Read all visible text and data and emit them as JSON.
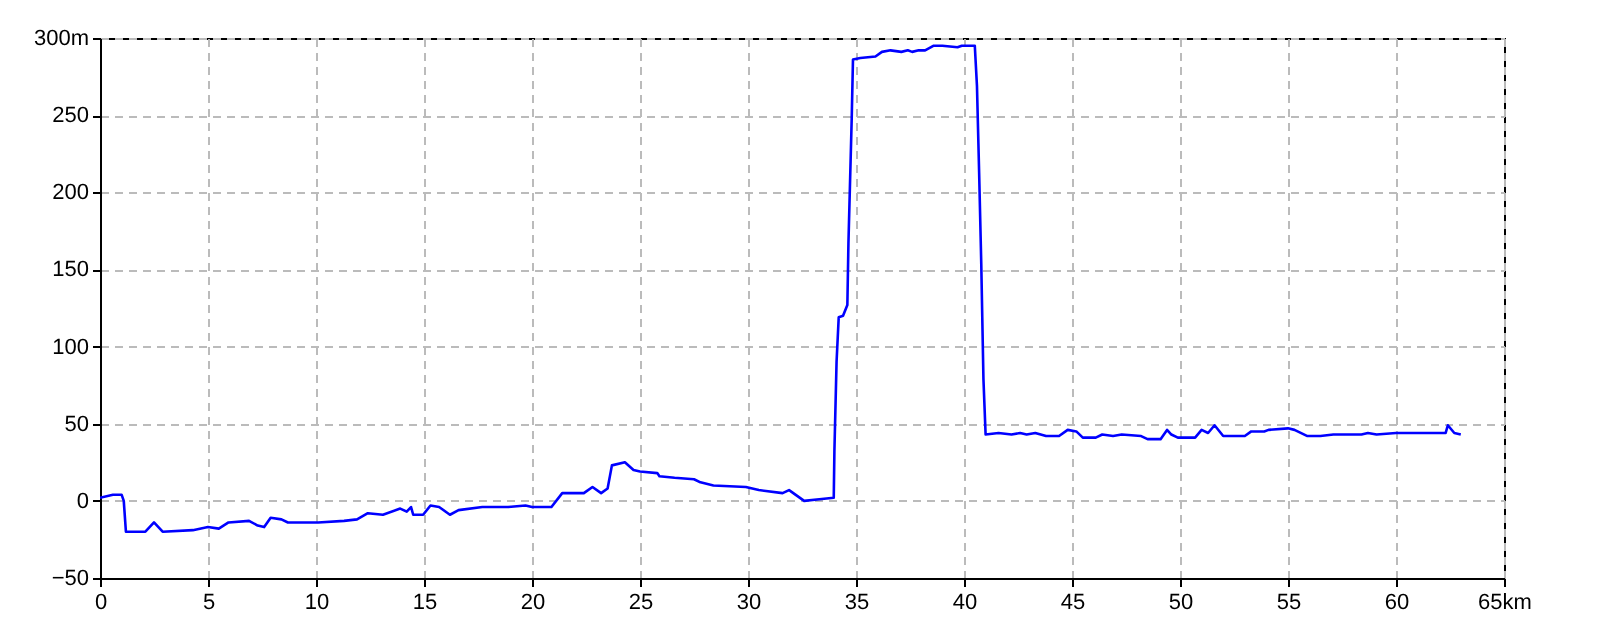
{
  "chart_data": {
    "type": "line",
    "x": [
      0,
      0.6,
      1.0,
      1.1,
      1.2,
      2.1,
      2.5,
      2.9,
      4.3,
      5.0,
      5.5,
      5.95,
      6.9,
      7.3,
      7.6,
      7.9,
      8.4,
      8.7,
      9.2,
      10.1,
      11.3,
      11.9,
      12.4,
      13.1,
      13.9,
      14.2,
      14.4,
      14.5,
      14.96,
      15.3,
      15.7,
      16.2,
      16.6,
      17.7,
      18.9,
      19.7,
      20.0,
      20.9,
      21.4,
      22.4,
      22.8,
      23.2,
      23.5,
      23.7,
      24.3,
      24.7,
      25.0,
      25.8,
      25.9,
      26.6,
      27.5,
      27.8,
      28.4,
      29.9,
      30.5,
      31.6,
      31.9,
      32.0,
      32.6,
      33.3,
      33.97,
      34.0,
      34.1,
      34.2,
      34.4,
      34.6,
      34.65,
      34.8,
      34.86,
      35.2,
      35.9,
      36.2,
      36.6,
      37.1,
      37.4,
      37.6,
      37.9,
      38.2,
      38.6,
      39.0,
      39.7,
      39.9,
      40.5,
      40.6,
      40.7,
      40.8,
      40.9,
      41.0,
      41.6,
      42.2,
      42.6,
      42.9,
      43.3,
      43.8,
      44.4,
      44.8,
      45.2,
      45.5,
      46.1,
      46.4,
      46.9,
      47.3,
      48.2,
      48.5,
      49.1,
      49.4,
      49.6,
      49.9,
      50.7,
      51.0,
      51.3,
      51.6,
      52.0,
      53.0,
      53.3,
      53.9,
      54.1,
      55.0,
      55.3,
      55.9,
      56.5,
      57.1,
      58.4,
      58.7,
      59.1,
      60.0,
      62.3,
      62.4,
      62.7,
      63.0
    ],
    "series": [
      {
        "color": "#0000ff",
        "values": [
          2,
          4,
          4,
          0,
          -20,
          -20,
          -14,
          -20,
          -19,
          -17,
          -18,
          -14,
          -13,
          -16,
          -17,
          -11,
          -12,
          -14,
          -14,
          -14,
          -13,
          -12,
          -8,
          -9,
          -5,
          -7,
          -4,
          -9,
          -9,
          -3,
          -4,
          -9,
          -6,
          -4,
          -4,
          -3,
          -4,
          -4,
          5,
          5,
          9,
          5,
          8,
          23,
          25,
          20,
          19,
          18,
          16,
          15,
          14,
          12,
          10,
          9,
          7,
          5,
          7,
          6,
          0,
          1,
          2,
          32,
          90,
          119,
          120,
          127,
          167,
          247,
          286,
          287,
          288,
          291,
          292,
          291,
          292,
          291,
          292,
          292,
          295,
          295,
          294,
          295,
          295,
          269,
          213,
          153,
          79,
          43,
          44,
          43,
          44,
          43,
          44,
          42,
          42,
          46,
          45,
          41,
          41,
          43,
          42,
          43,
          42,
          40,
          40,
          46,
          43,
          41,
          41,
          46,
          44,
          49,
          42,
          42,
          45,
          45,
          46,
          47,
          46,
          42,
          42,
          43,
          43,
          44,
          43,
          44,
          44,
          49,
          44,
          43
        ]
      }
    ],
    "xlim": [
      0,
      65
    ],
    "xticks": [
      0,
      5,
      10,
      15,
      20,
      25,
      30,
      35,
      40,
      45,
      50,
      55,
      60,
      {
        "value": 65,
        "label": "65km"
      }
    ],
    "ylim": [
      -50,
      300
    ],
    "yticks": [
      -50,
      0,
      50,
      100,
      150,
      200,
      250,
      {
        "value": 300,
        "label": "300m"
      }
    ],
    "grid": true
  }
}
